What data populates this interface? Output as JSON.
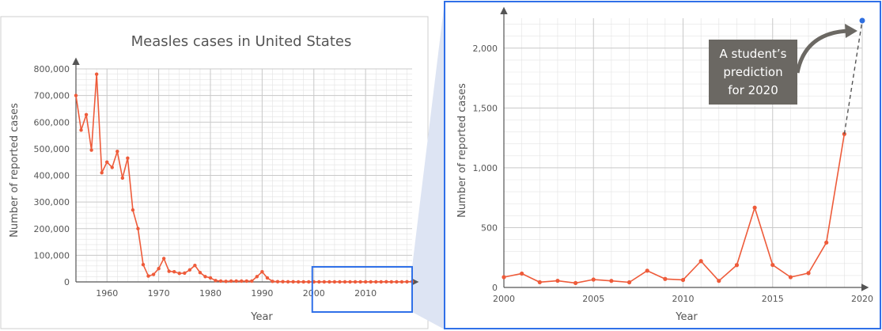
{
  "colors": {
    "series": "#ee5b3a",
    "highlight": "#3070e8",
    "prediction_point": "#2f6fe0",
    "annotation_bg": "#6b6863",
    "grid": "#e3e3e3",
    "zoom_fill": "#dde4f3"
  },
  "chart_data": [
    {
      "type": "line",
      "title": "Measles cases in United States",
      "xlabel": "Year",
      "ylabel": "Number of reported cases",
      "xlim": [
        1954,
        2019
      ],
      "ylim": [
        0,
        800000
      ],
      "x_ticks": [
        1960,
        1970,
        1980,
        1990,
        2000,
        2010
      ],
      "x_tick_labels": [
        "1960",
        "1970",
        "1980",
        "1990",
        "2000",
        "2010"
      ],
      "y_ticks": [
        0,
        100000,
        200000,
        300000,
        400000,
        500000,
        600000,
        700000,
        800000
      ],
      "y_tick_labels": [
        "0",
        "100,000",
        "200,000",
        "300,000",
        "400,000",
        "500,000",
        "600,000",
        "700,000",
        "800,000"
      ],
      "grid": true,
      "x": [
        1954,
        1955,
        1956,
        1957,
        1958,
        1959,
        1960,
        1961,
        1962,
        1963,
        1964,
        1965,
        1966,
        1967,
        1968,
        1969,
        1970,
        1971,
        1972,
        1973,
        1974,
        1975,
        1976,
        1977,
        1978,
        1979,
        1980,
        1981,
        1982,
        1983,
        1984,
        1985,
        1986,
        1987,
        1988,
        1989,
        1990,
        1991,
        1992,
        1993,
        1994,
        1995,
        1996,
        1997,
        1998,
        1999,
        2000,
        2001,
        2002,
        2003,
        2004,
        2005,
        2006,
        2007,
        2008,
        2009,
        2010,
        2011,
        2012,
        2013,
        2014,
        2015,
        2016,
        2017,
        2018,
        2019
      ],
      "values": [
        700000,
        570000,
        628000,
        495000,
        780000,
        410000,
        450000,
        430000,
        490000,
        390000,
        465000,
        270000,
        200000,
        65000,
        22000,
        28000,
        50000,
        88000,
        40000,
        38000,
        32000,
        33000,
        45000,
        62000,
        35000,
        20000,
        15000,
        5000,
        3000,
        2000,
        3000,
        3000,
        3000,
        3000,
        3000,
        20000,
        38000,
        15000,
        2000,
        1000,
        1000,
        500,
        500,
        200,
        100,
        100,
        100,
        100,
        100,
        100,
        100,
        100,
        100,
        100,
        100,
        100,
        100,
        200,
        100,
        200,
        700,
        200,
        100,
        100,
        400,
        1300
      ],
      "highlight_range": [
        2000,
        2019
      ]
    },
    {
      "type": "line",
      "title": "",
      "xlabel": "Year",
      "ylabel": "Number of reported cases",
      "xlim": [
        2000,
        2020
      ],
      "ylim": [
        0,
        2250
      ],
      "x_ticks": [
        2000,
        2005,
        2010,
        2015,
        2020
      ],
      "x_tick_labels": [
        "2000",
        "2005",
        "2010",
        "2015",
        "2020"
      ],
      "y_ticks": [
        0,
        500,
        1000,
        1500,
        2000
      ],
      "y_tick_labels": [
        "0",
        "500",
        "1,000",
        "1,500",
        "2,000"
      ],
      "grid": true,
      "x": [
        2000,
        2001,
        2002,
        2003,
        2004,
        2005,
        2006,
        2007,
        2008,
        2009,
        2010,
        2011,
        2012,
        2013,
        2014,
        2015,
        2016,
        2017,
        2018,
        2019
      ],
      "values": [
        86,
        116,
        44,
        56,
        37,
        66,
        55,
        43,
        140,
        71,
        63,
        220,
        55,
        187,
        667,
        188,
        86,
        120,
        375,
        1282
      ],
      "prediction": {
        "x": 2020,
        "y": 2230,
        "label": "A student’s prediction for 2020"
      }
    }
  ]
}
